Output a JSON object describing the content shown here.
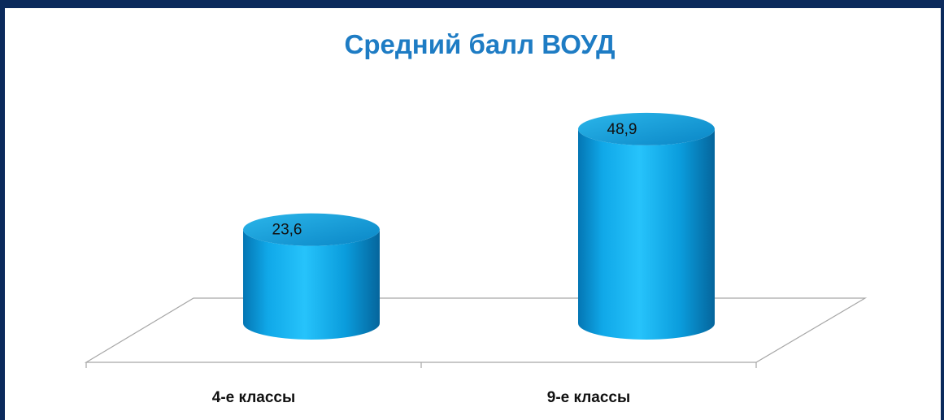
{
  "chart_data": {
    "type": "bar",
    "style": "3d-cylinder",
    "title": "Средний балл ВОУД",
    "categories": [
      "4-е классы",
      "9-е классы"
    ],
    "values": [
      23.6,
      48.9
    ],
    "value_labels": [
      "23,6",
      "48,9"
    ],
    "bar_color": "#0aa0e0",
    "title_color": "#1e7cc4",
    "frame_color": "#0b2a5c",
    "legend": "none",
    "grid": false
  }
}
